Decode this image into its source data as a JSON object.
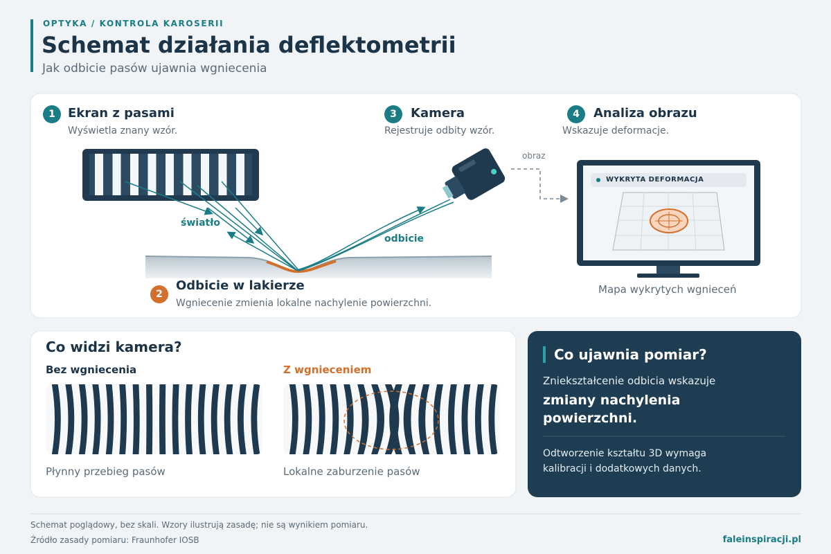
{
  "header": {
    "kicker": "OPTYKA / KONTROLA KAROSERII",
    "title": "Schemat działania deflektometrii",
    "subtitle": "Jak odbicie pasów ujawnia wgniecenia"
  },
  "diagram": {
    "steps": [
      {
        "number": "1",
        "title": "Ekran z pasami",
        "text": "Wyświetla znany wzór."
      },
      {
        "number": "2",
        "title": "Odbicie w lakierze",
        "text": "Wgniecenie zmienia lokalne nachylenie powierzchni."
      },
      {
        "number": "3",
        "title": "Kamera",
        "text": "Rejestruje odbity wzór."
      },
      {
        "number": "4",
        "title": "Analiza obrazu",
        "text": "Wskazuje deformacje."
      }
    ],
    "labels": {
      "light": "światło",
      "reflection": "odbicie",
      "image": "obraz",
      "monitor_badge": "WYKRYTA DEFORMACJA",
      "monitor_caption": "Mapa wykrytych wgnieceń"
    }
  },
  "camera_view": {
    "title": "Co widzi kamera?",
    "panels": [
      {
        "title": "Bez wgniecenia",
        "caption": "Płynny przebieg pasów"
      },
      {
        "title": "Z wgnieceniem",
        "caption": "Lokalne zaburzenie pasów"
      }
    ]
  },
  "insight": {
    "title": "Co ujawnia pomiar?",
    "lead": "Zniekształcenie odbicia wskazuje",
    "highlight": "zmiany nachylenia powierzchni.",
    "note": "Odtworzenie kształtu 3D wymaga kalibracji i dodatkowych danych."
  },
  "footer": {
    "disclaimer": "Schemat poglądowy, bez skali. Wzory ilustrują zasadę; nie są wynikiem pomiaru.",
    "source": "Źródło zasady pomiaru: Fraunhofer IOSB",
    "site": "faleinspiracji.pl"
  }
}
